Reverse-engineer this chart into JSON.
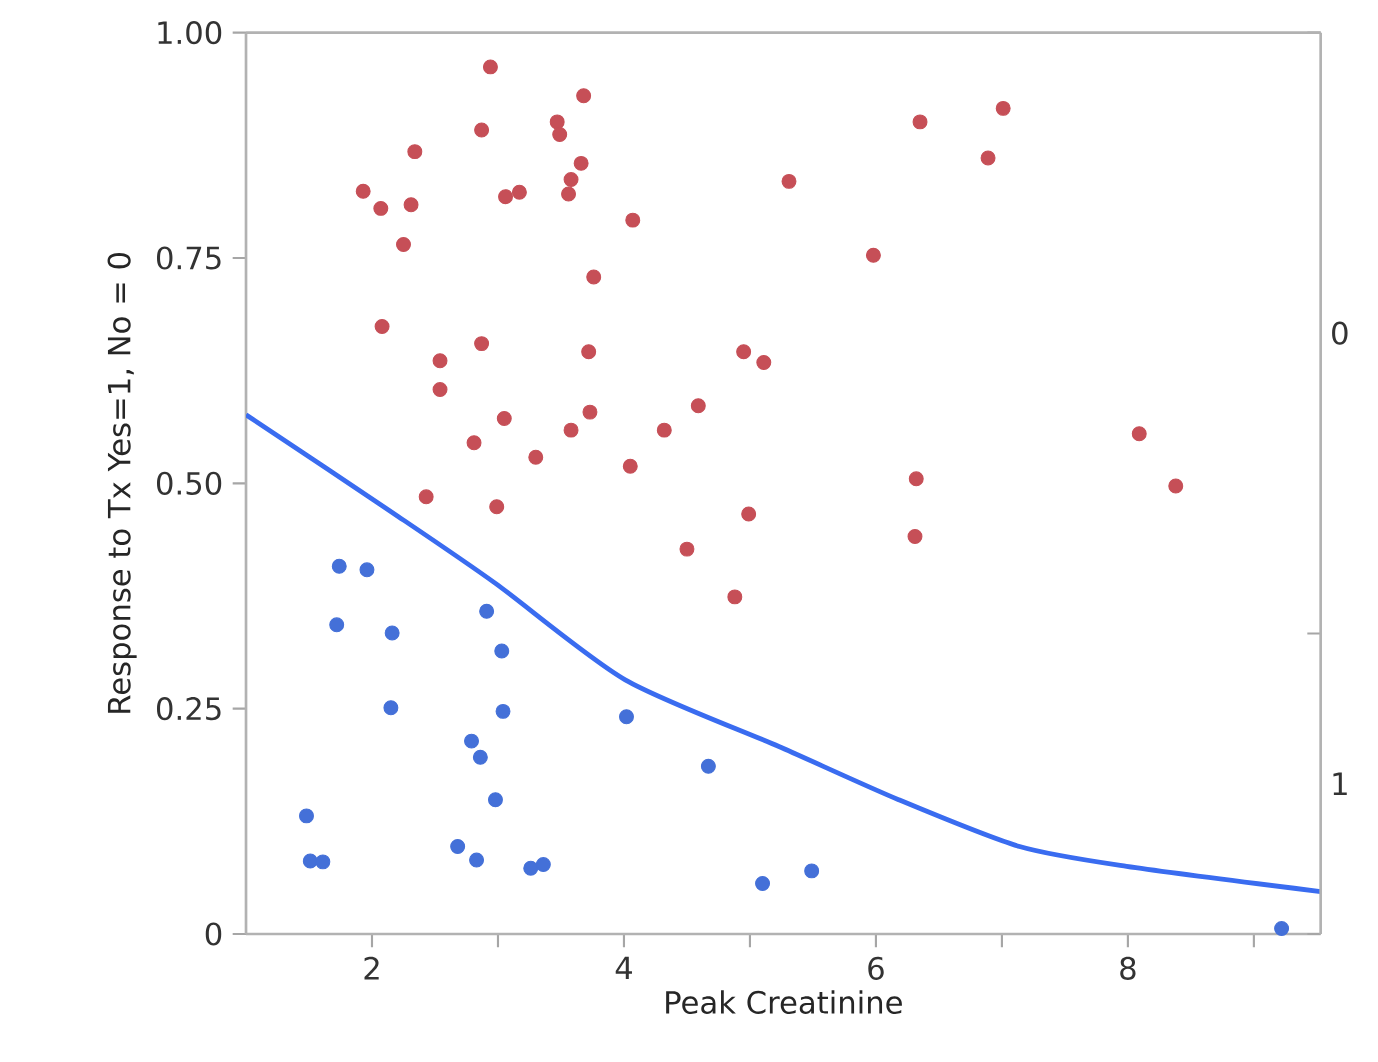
{
  "chart_data": {
    "type": "scatter",
    "xlabel": "Peak Creatinine",
    "ylabel": "Response to Tx Yes=1,  No = 0",
    "grid": false,
    "xlim": [
      1,
      9.53
    ],
    "xticks": [
      2,
      {
        "value": 3,
        "label": null
      },
      4,
      {
        "value": 5,
        "label": null
      },
      6,
      {
        "value": 7,
        "label": null
      },
      8,
      {
        "value": 9,
        "label": null
      }
    ],
    "ylim": [
      0,
      1
    ],
    "yticks": [
      0,
      {
        "value": 0.25,
        "label": "0.25"
      },
      {
        "value": 0.5,
        "label": "0.50"
      },
      {
        "value": 0.75,
        "label": "0.75"
      },
      {
        "value": 1,
        "label": "1.00"
      }
    ],
    "y2_categories": [
      "0",
      "1"
    ],
    "series": [
      {
        "color": "#c64f57",
        "marker": "circle",
        "x": [
          1.93,
          2.07,
          2.34,
          2.31,
          2.25,
          2.08,
          2.94,
          2.87,
          3.06,
          3.17,
          3.47,
          3.49,
          3.68,
          3.66,
          3.58,
          3.56,
          4.07,
          3.76,
          5.31,
          2.87,
          2.54,
          2.54,
          3.72,
          3.73,
          3.05,
          3.58,
          2.81,
          3.3,
          4.05,
          4.32,
          4.59,
          4.95,
          5.11,
          2.43,
          2.99,
          4.99,
          6.35,
          7.01,
          6.89,
          5.98,
          8.09,
          8.38,
          6.32,
          6.31,
          4.5,
          4.88
        ],
        "values": [
          0.824,
          0.805,
          0.868,
          0.809,
          0.765,
          0.674,
          0.962,
          0.892,
          0.818,
          0.823,
          0.901,
          0.887,
          0.93,
          0.855,
          0.837,
          0.821,
          0.792,
          0.729,
          0.835,
          0.655,
          0.636,
          0.604,
          0.646,
          0.579,
          0.572,
          0.559,
          0.545,
          0.529,
          0.519,
          0.559,
          0.586,
          0.646,
          0.634,
          0.485,
          0.474,
          0.466,
          0.901,
          0.916,
          0.861,
          0.753,
          0.555,
          0.497,
          0.505,
          0.441,
          0.427,
          0.374
        ]
      },
      {
        "color": "#4470d8",
        "marker": "circle",
        "x": [
          1.74,
          1.96,
          1.72,
          2.16,
          2.15,
          2.91,
          3.03,
          3.04,
          4.02,
          2.79,
          2.86,
          4.67,
          2.98,
          1.48,
          1.51,
          1.61,
          2.68,
          2.83,
          3.26,
          3.36,
          5.1,
          5.49,
          9.22
        ],
        "values": [
          0.408,
          0.404,
          0.343,
          0.334,
          0.251,
          0.358,
          0.314,
          0.247,
          0.241,
          0.214,
          0.196,
          0.186,
          0.149,
          0.131,
          0.081,
          0.08,
          0.097,
          0.082,
          0.073,
          0.077,
          0.056,
          0.07,
          0.006
        ]
      },
      {
        "type": "line",
        "marker": "none",
        "color": "#3a6cf0",
        "x": [
          1.0,
          2.21,
          2.98,
          4.01,
          5.23,
          6.18,
          7.14,
          7.99,
          9.53
        ],
        "values": [
          0.576,
          0.463,
          0.389,
          0.282,
          0.208,
          0.149,
          0.097,
          0.075,
          0.047
        ]
      }
    ]
  }
}
